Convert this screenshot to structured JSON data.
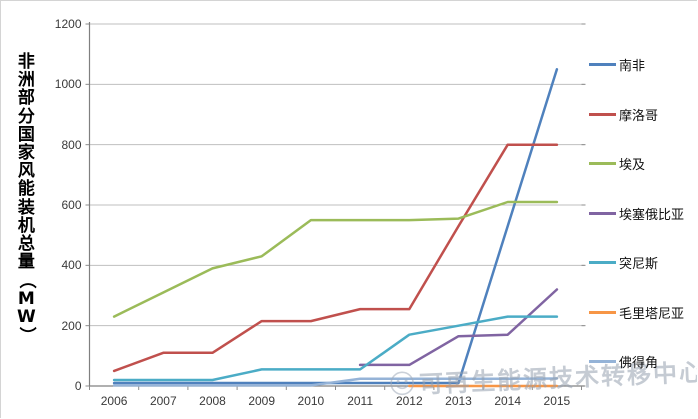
{
  "watermark": {
    "text": "可再生能源技术转移中心"
  },
  "chart_data": {
    "type": "line",
    "title": "",
    "ylabel": "非洲部分国家风能装机总量（MW）",
    "xlabel": "",
    "categories": [
      "2006",
      "2007",
      "2008",
      "2009",
      "2010",
      "2011",
      "2012",
      "2013",
      "2014",
      "2015"
    ],
    "y_ticks": [
      0,
      200,
      400,
      600,
      800,
      1000,
      1200
    ],
    "ylim": [
      0,
      1200
    ],
    "grid": true,
    "legend_position": "right",
    "series": [
      {
        "name": "南非",
        "color": "#4F81BD",
        "values": [
          10,
          10,
          10,
          10,
          10,
          10,
          10,
          10,
          530,
          1050
        ]
      },
      {
        "name": "摩洛哥",
        "color": "#C0504D",
        "values": [
          50,
          110,
          110,
          215,
          215,
          255,
          255,
          530,
          800,
          800
        ]
      },
      {
        "name": "埃及",
        "color": "#9BBB59",
        "values": [
          230,
          310,
          390,
          430,
          550,
          550,
          550,
          555,
          610,
          610
        ]
      },
      {
        "name": "埃塞俄比亚",
        "color": "#8064A2",
        "values": [
          null,
          null,
          null,
          null,
          null,
          70,
          70,
          165,
          170,
          320
        ]
      },
      {
        "name": "突尼斯",
        "color": "#4BACC6",
        "values": [
          20,
          20,
          20,
          55,
          55,
          55,
          170,
          200,
          230,
          230
        ]
      },
      {
        "name": "毛里塔尼亚",
        "color": "#F79646",
        "values": [
          null,
          null,
          null,
          null,
          null,
          null,
          0,
          0,
          0,
          0
        ]
      },
      {
        "name": "佛得角",
        "color": "#95B3D7",
        "values": [
          2,
          2,
          2,
          2,
          2,
          24,
          24,
          24,
          24,
          25
        ]
      }
    ]
  }
}
